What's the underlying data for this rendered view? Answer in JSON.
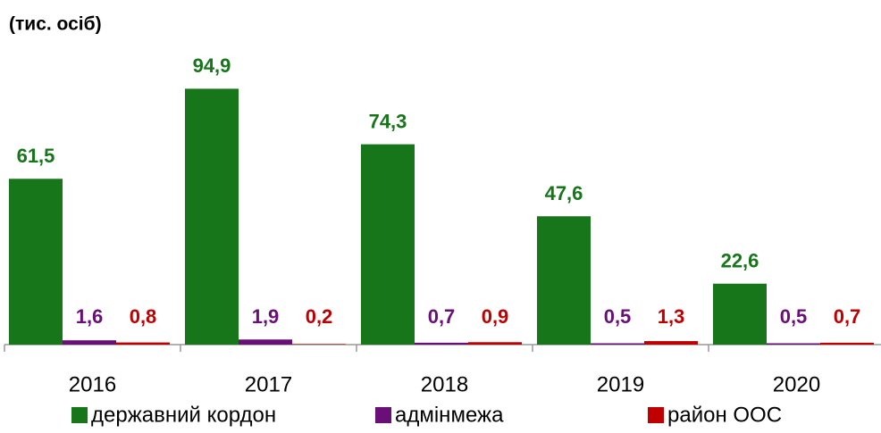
{
  "chart_data": {
    "type": "bar",
    "subtitle": "(тис. осіб)",
    "categories": [
      "2016",
      "2017",
      "2018",
      "2019",
      "2020"
    ],
    "series": [
      {
        "name": "державний кордон",
        "color": "#17751a",
        "values": [
          61.5,
          94.9,
          74.3,
          47.6,
          22.6
        ],
        "value_labels": [
          "61,5",
          "94,9",
          "74,3",
          "47,6",
          "22,6"
        ]
      },
      {
        "name": "адмінмежа",
        "color": "#6a0f78",
        "values": [
          1.6,
          1.9,
          0.7,
          0.5,
          0.5
        ],
        "value_labels": [
          "1,6",
          "1,9",
          "0,7",
          "0,5",
          "0,5"
        ]
      },
      {
        "name": "район ООС",
        "color": "#c00000",
        "values": [
          0.8,
          0.2,
          0.9,
          1.3,
          0.7
        ],
        "value_labels": [
          "0,8",
          "0,2",
          "0,9",
          "1,3",
          "0,7"
        ]
      }
    ],
    "ylim": [
      0,
      100
    ],
    "legend": "bottom"
  }
}
